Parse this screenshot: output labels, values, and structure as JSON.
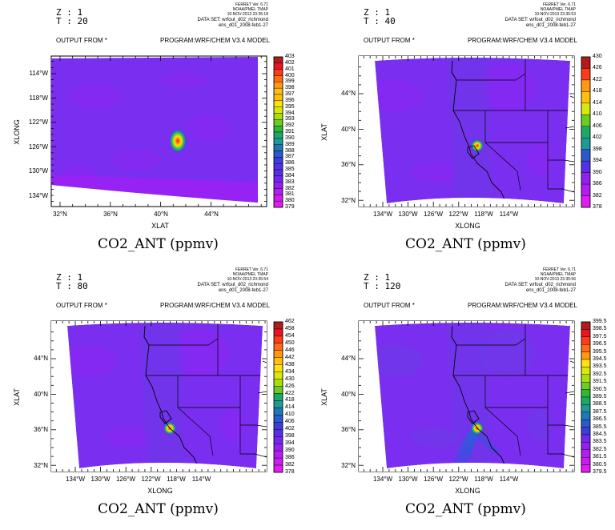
{
  "chart_data": [
    {
      "type": "heatmap",
      "z_label": "Z : 1",
      "t_label": "T : 20",
      "output_from": "OUTPUT FROM *",
      "program": "PROGRAM:WRF/CHEM V3.4 MODEL",
      "ferret": [
        "FERRET Ver. 6.71",
        "NOAA/PMEL TMAP",
        "10-NOV-2013 23:35:18"
      ],
      "dataset": [
        "DATA SET: wrfout_d02_richmond",
        "ens_d01_2008-feb1-27"
      ],
      "x_title": "XLAT",
      "y_title": "XLONG",
      "x_ticks": [
        "32°N",
        "36°N",
        "40°N",
        "44°N"
      ],
      "y_ticks": [
        "114°W",
        "118°W",
        "122°W",
        "126°W",
        "130°W",
        "134°W"
      ],
      "colorbar": [
        "379",
        "380",
        "381",
        "382",
        "383",
        "384",
        "385",
        "386",
        "387",
        "388",
        "389",
        "390",
        "391",
        "392",
        "393",
        "394",
        "395",
        "396",
        "397",
        "398",
        "399",
        "400",
        "401",
        "402",
        "403"
      ],
      "caption": "CO2_ANT (ppmv)"
    },
    {
      "type": "heatmap",
      "z_label": "Z : 1",
      "t_label": "T : 40",
      "output_from": "OUTPUT FROM *",
      "program": "PROGRAM:WRF/CHEM V3.4 MODEL",
      "ferret": [
        "FERRET Ver. 6.71",
        "NOAA/PMEL TMAP",
        "10-NOV-2013 23:35:53"
      ],
      "dataset": [
        "DATA SET: wrfout_d02_richmond",
        "ens_d01_2008-feb1-27"
      ],
      "x_title": "XLONG",
      "y_title": "XLAT",
      "x_ticks": [
        "134°W",
        "130°W",
        "126°W",
        "122°W",
        "118°W",
        "114°W"
      ],
      "y_ticks": [
        "44°N",
        "40°N",
        "36°N",
        "32°N"
      ],
      "colorbar": [
        "378",
        "382",
        "386",
        "390",
        "394",
        "398",
        "402",
        "406",
        "410",
        "414",
        "418",
        "422",
        "426",
        "430"
      ],
      "caption": "CO2_ANT (ppmv)"
    },
    {
      "type": "heatmap",
      "z_label": "Z : 1",
      "t_label": "T : 80",
      "output_from": "OUTPUT FROM *",
      "program": "PROGRAM:WRF/CHEM V3.4 MODEL",
      "ferret": [
        "FERRET Ver. 6.71",
        "NOAA/PMEL TMAP",
        "10-NOV-2013 23:35:54"
      ],
      "dataset": [
        "DATA SET: wrfout_d02_richmond",
        "ens_d01_2008-feb1-27"
      ],
      "x_title": "XLONG",
      "y_title": "XLAT",
      "x_ticks": [
        "134°W",
        "130°W",
        "126°W",
        "122°W",
        "118°W",
        "114°W"
      ],
      "y_ticks": [
        "44°N",
        "40°N",
        "36°N",
        "32°N"
      ],
      "colorbar": [
        "378",
        "382",
        "386",
        "390",
        "394",
        "398",
        "402",
        "406",
        "410",
        "414",
        "418",
        "422",
        "426",
        "430",
        "434",
        "438",
        "442",
        "446",
        "450",
        "454",
        "458",
        "462"
      ],
      "caption": "CO2_ANT (ppmv)"
    },
    {
      "type": "heatmap",
      "z_label": "Z : 1",
      "t_label": "T : 120",
      "output_from": "OUTPUT FROM *",
      "program": "PROGRAM:WRF/CHEM V3.4 MODEL",
      "ferret": [
        "FERRET Ver. 6.71",
        "NOAA/PMEL TMAP",
        "10-NOV-2013 23:35:56"
      ],
      "dataset": [
        "DATA SET: wrfout_d02_richmond",
        "ens_d01_2008-feb1-27"
      ],
      "x_title": "XLONG",
      "y_title": "XLAT",
      "x_ticks": [
        "134°W",
        "130°W",
        "126°W",
        "122°W",
        "118°W",
        "114°W"
      ],
      "y_ticks": [
        "44°N",
        "40°N",
        "36°N",
        "32°N"
      ],
      "colorbar": [
        "379.5",
        "380.5",
        "381.5",
        "382.5",
        "383.5",
        "384.5",
        "385.5",
        "386.5",
        "387.5",
        "388.5",
        "389.5",
        "390.5",
        "391.5",
        "392.5",
        "393.5",
        "394.5",
        "395.5",
        "396.5",
        "397.5",
        "398.5",
        "399.5"
      ],
      "caption": "CO2_ANT (ppmv)"
    }
  ]
}
